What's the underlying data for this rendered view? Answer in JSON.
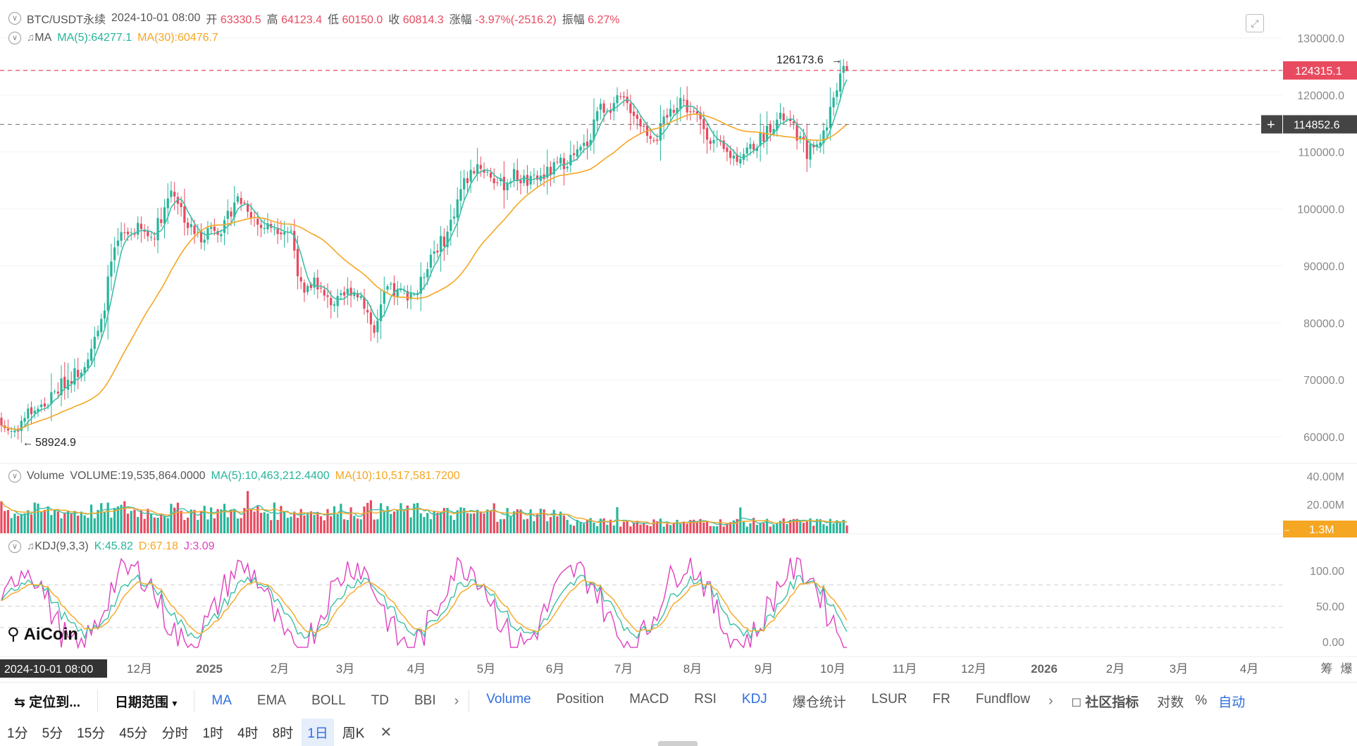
{
  "header": {
    "symbol": "BTC/USDT永续",
    "date": "2024-10-01 08:00",
    "open_label": "开",
    "open": "63330.5",
    "high_label": "高",
    "high": "64123.4",
    "low_label": "低",
    "low": "60150.0",
    "close_label": "收",
    "close": "60814.3",
    "change_label": "涨幅",
    "change": "-3.97%(-2516.2)",
    "amp_label": "振幅",
    "amp": "6.27%"
  },
  "ma_row": {
    "name": "MA",
    "ma5": "MA(5):64277.1",
    "ma30": "MA(30):60476.7"
  },
  "volume_row": {
    "name": "Volume",
    "vol": "VOLUME:19,535,864.0000",
    "ma5": "MA(5):10,463,212.4400",
    "ma10": "MA(10):10,517,581.7200"
  },
  "kdj_row": {
    "name": "KDJ(9,3,3)",
    "k": "K:45.82",
    "d": "D:67.18",
    "j": "J:3.09"
  },
  "price_axis": [
    "130000.0",
    "120000.0",
    "110000.0",
    "100000.0",
    "90000.0",
    "80000.0",
    "70000.0",
    "60000.0"
  ],
  "volume_axis": [
    "40.00M",
    "20.00M"
  ],
  "kdj_axis": [
    "100.00",
    "50.00",
    "0.00"
  ],
  "price_tags": {
    "last": "124315.1",
    "cross": "114852.6",
    "vol_last": "1.3M"
  },
  "annotations": {
    "high": "126173.6",
    "low": "58924.9"
  },
  "time_axis": [
    {
      "label": "2024-10-01 08:00",
      "kind": "highlight"
    },
    {
      "label": "12月",
      "kind": "normal"
    },
    {
      "label": "2025",
      "kind": "bold"
    },
    {
      "label": "2月",
      "kind": "normal"
    },
    {
      "label": "3月",
      "kind": "normal"
    },
    {
      "label": "4月",
      "kind": "normal"
    },
    {
      "label": "5月",
      "kind": "normal"
    },
    {
      "label": "6月",
      "kind": "normal"
    },
    {
      "label": "7月",
      "kind": "normal"
    },
    {
      "label": "8月",
      "kind": "normal"
    },
    {
      "label": "9月",
      "kind": "normal"
    },
    {
      "label": "10月",
      "kind": "normal"
    },
    {
      "label": "11月",
      "kind": "normal"
    },
    {
      "label": "12月",
      "kind": "normal"
    },
    {
      "label": "2026",
      "kind": "bold"
    },
    {
      "label": "2月",
      "kind": "normal"
    },
    {
      "label": "3月",
      "kind": "normal"
    },
    {
      "label": "4月",
      "kind": "normal"
    }
  ],
  "axis_right_labels": [
    "筹",
    "爆"
  ],
  "logo_text": "AiCoin",
  "colors": {
    "up": "#26b59a",
    "down": "#e84a5f",
    "ma5": "#3dbfa6",
    "ma30": "#f5a623",
    "kdj_j": "#e040c0",
    "accent": "#2f6fe0"
  },
  "toolbar": {
    "locate": "定位到...",
    "date_range": "日期范围",
    "main_indicators": [
      "MA",
      "EMA",
      "BOLL",
      "TD",
      "BBI"
    ],
    "sub_indicators": [
      "Volume",
      "Position",
      "MACD",
      "RSI",
      "KDJ",
      "爆仓统计",
      "LSUR",
      "FR",
      "Fundflow"
    ],
    "community": "社区指标",
    "log": "对数",
    "percent": "%",
    "auto": "自动"
  },
  "timeframes": [
    "1分",
    "5分",
    "15分",
    "45分",
    "分时",
    "1时",
    "4时",
    "8时",
    "1日",
    "周K"
  ],
  "active_timeframe": "1日"
}
